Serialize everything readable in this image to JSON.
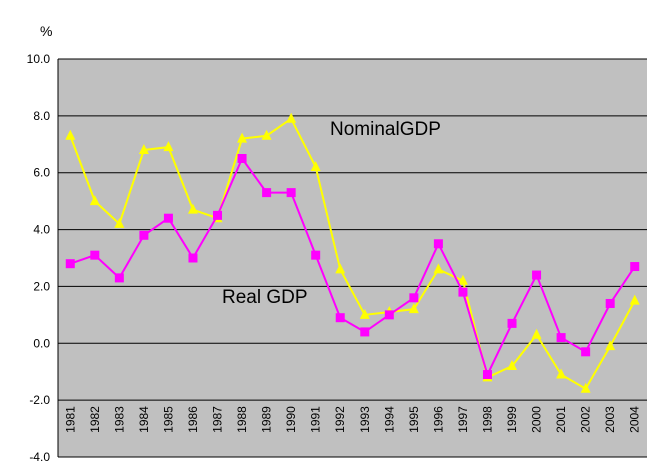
{
  "chart_data": {
    "type": "line",
    "y_label": "%",
    "categories": [
      "1981",
      "1982",
      "1983",
      "1984",
      "1985",
      "1986",
      "1987",
      "1988",
      "1989",
      "1990",
      "1991",
      "1992",
      "1993",
      "1994",
      "1995",
      "1996",
      "1997",
      "1998",
      "1999",
      "2000",
      "2001",
      "2002",
      "2003",
      "2004"
    ],
    "series": [
      {
        "name": "NominalGDP",
        "color": "#ffff00",
        "marker": "triangle",
        "values": [
          7.3,
          5.0,
          4.2,
          6.8,
          6.9,
          4.7,
          4.4,
          7.2,
          7.3,
          7.9,
          6.2,
          2.6,
          1.0,
          1.1,
          1.2,
          2.6,
          2.2,
          -1.2,
          -0.8,
          0.3,
          -1.1,
          -1.6,
          -0.1,
          1.5
        ]
      },
      {
        "name": "Real GDP",
        "color": "#ff00ff",
        "marker": "square",
        "values": [
          2.8,
          3.1,
          2.3,
          3.8,
          4.4,
          3.0,
          4.5,
          6.5,
          5.3,
          5.3,
          3.1,
          0.9,
          0.4,
          1.0,
          1.6,
          3.5,
          1.8,
          -1.1,
          0.7,
          2.4,
          0.2,
          -0.3,
          1.4,
          2.7
        ]
      }
    ],
    "ylim": [
      -4,
      10
    ],
    "yticks": [
      {
        "value": -4,
        "label": "-4.0"
      },
      {
        "value": -2,
        "label": "-2.0"
      },
      {
        "value": 0,
        "label": "0.0"
      },
      {
        "value": 2,
        "label": "2.0"
      },
      {
        "value": 4,
        "label": "4.0"
      },
      {
        "value": 6,
        "label": "6.0"
      },
      {
        "value": 8,
        "label": "8.0"
      },
      {
        "value": 10,
        "label": "10.0"
      }
    ],
    "grid": true,
    "background": "#c0c0c0"
  }
}
